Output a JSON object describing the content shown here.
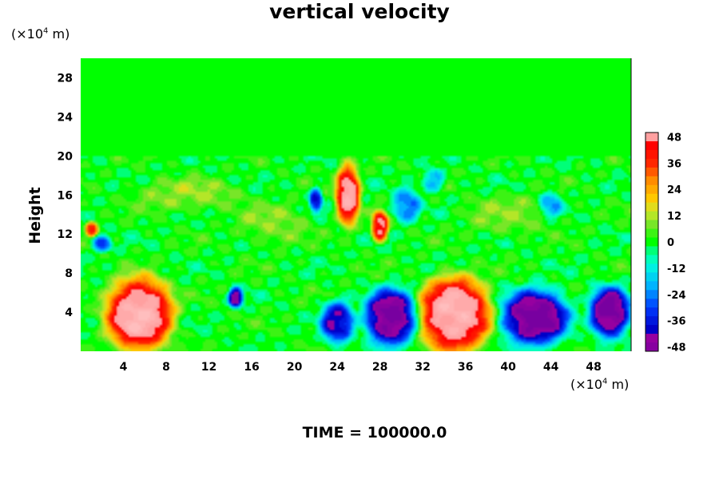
{
  "chart_data": {
    "type": "heatmap",
    "title": "vertical velocity",
    "ylabel": "Height",
    "xunit": {
      "prefix": "(×10",
      "exp": "4",
      "suffix": " m)"
    },
    "yunit": {
      "prefix": "(×10",
      "exp": "4",
      "suffix": " m)"
    },
    "xlim": [
      0,
      51.5
    ],
    "ylim": [
      0,
      30
    ],
    "xticks": [
      4,
      8,
      12,
      16,
      20,
      24,
      28,
      32,
      36,
      40,
      44,
      48
    ],
    "yticks": [
      4,
      8,
      12,
      16,
      20,
      24,
      28
    ],
    "colorbar": {
      "range": [
        -50,
        50
      ],
      "ticks": [
        48,
        36,
        24,
        12,
        0,
        -12,
        -24,
        -36,
        -48
      ]
    },
    "features": [
      {
        "x": 5.5,
        "y": 3.8,
        "rx": 3.6,
        "ry": 4.3,
        "value": 55
      },
      {
        "x": 35.0,
        "y": 3.8,
        "rx": 3.8,
        "ry": 4.4,
        "value": 55
      },
      {
        "x": 25.0,
        "y": 16.0,
        "rx": 1.3,
        "ry": 3.5,
        "value": 52
      },
      {
        "x": 28.0,
        "y": 12.8,
        "rx": 0.9,
        "ry": 1.8,
        "value": 48
      },
      {
        "x": 29.0,
        "y": 3.5,
        "rx": 2.8,
        "ry": 3.3,
        "value": -52
      },
      {
        "x": 24.0,
        "y": 3.0,
        "rx": 1.8,
        "ry": 2.5,
        "value": -40
      },
      {
        "x": 42.5,
        "y": 3.5,
        "rx": 3.6,
        "ry": 3.3,
        "value": -52
      },
      {
        "x": 49.5,
        "y": 4.0,
        "rx": 2.2,
        "ry": 3.0,
        "value": -52
      },
      {
        "x": 14.5,
        "y": 5.5,
        "rx": 0.8,
        "ry": 1.2,
        "value": -46
      },
      {
        "x": 22.0,
        "y": 15.5,
        "rx": 0.7,
        "ry": 1.4,
        "value": -38
      },
      {
        "x": 1.0,
        "y": 12.5,
        "rx": 0.7,
        "ry": 0.9,
        "value": 34
      },
      {
        "x": 10.0,
        "y": 16.0,
        "rx": 6.0,
        "ry": 2.0,
        "value": 9
      },
      {
        "x": 18.0,
        "y": 13.0,
        "rx": 4.0,
        "ry": 2.5,
        "value": 8
      },
      {
        "x": 40.0,
        "y": 14.0,
        "rx": 5.0,
        "ry": 2.5,
        "value": 7
      },
      {
        "x": 30.5,
        "y": 15.0,
        "rx": 1.5,
        "ry": 2.0,
        "value": -25
      },
      {
        "x": 33.0,
        "y": 17.5,
        "rx": 1.2,
        "ry": 1.3,
        "value": -20
      },
      {
        "x": 44.0,
        "y": 15.0,
        "rx": 1.2,
        "ry": 1.5,
        "value": -22
      },
      {
        "x": 2.0,
        "y": 11.0,
        "rx": 1.0,
        "ry": 1.0,
        "value": -28
      }
    ]
  },
  "footer": {
    "time_label": "TIME = 100000.0"
  }
}
